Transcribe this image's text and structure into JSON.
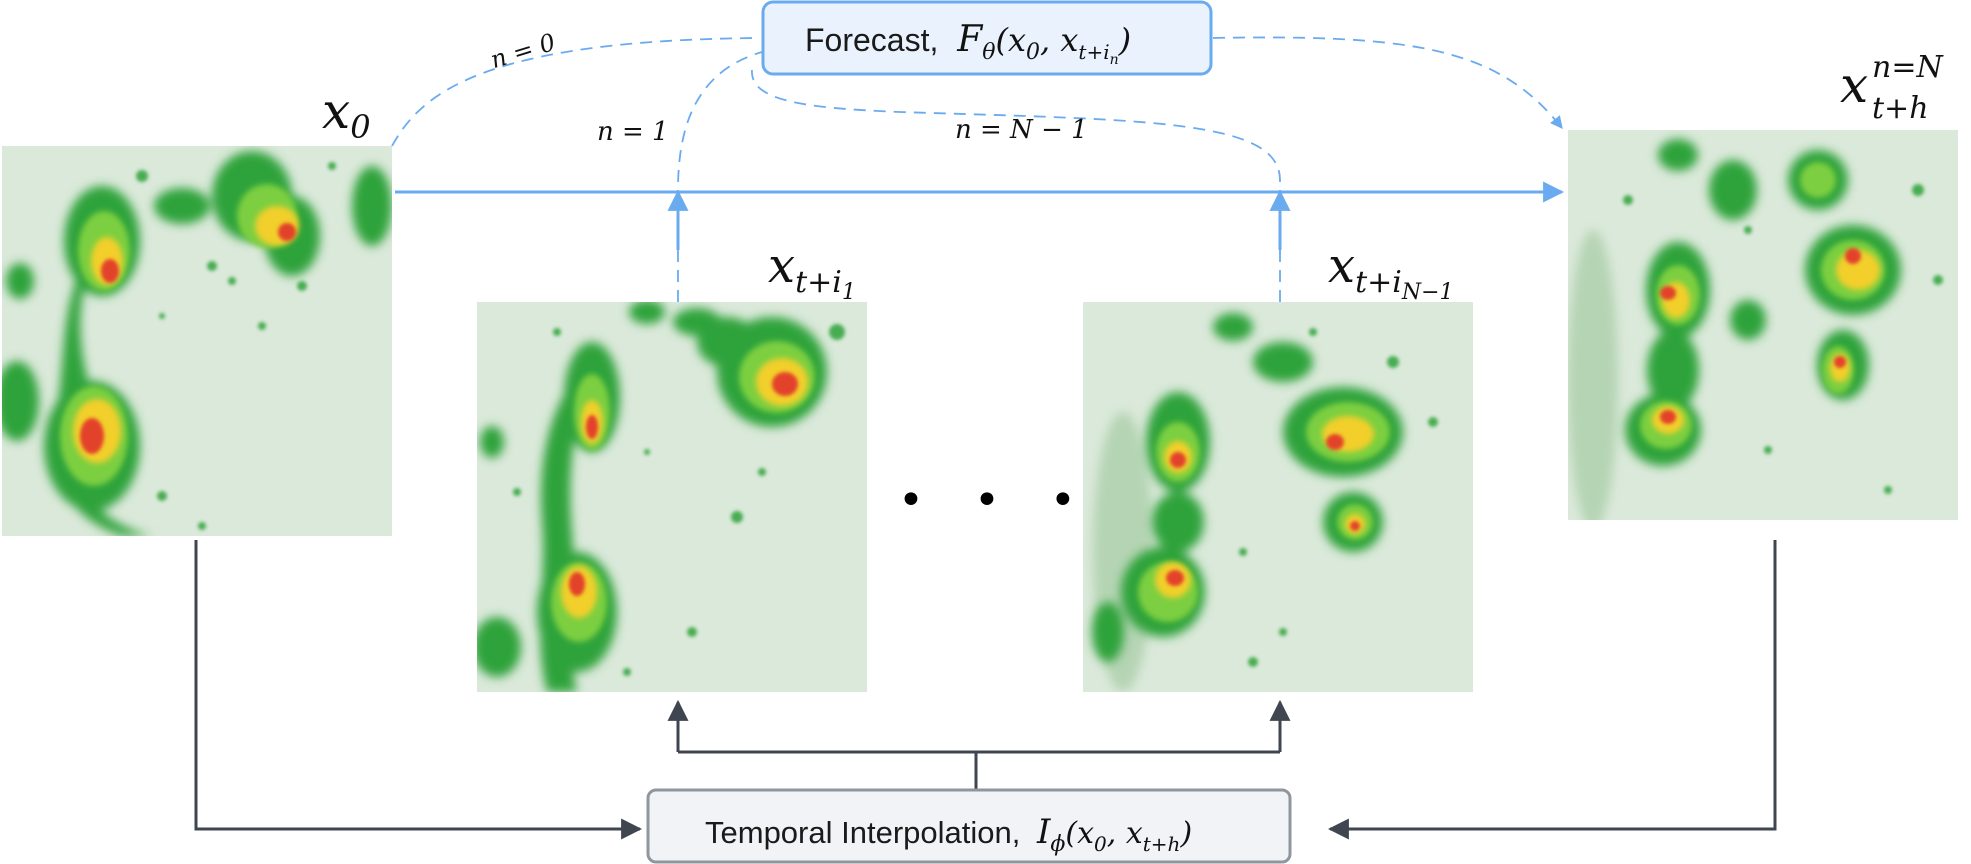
{
  "forecast_box": {
    "label": "Forecast,",
    "fn_symbol": "F",
    "fn_sub": "θ",
    "args_start": "(x",
    "arg1_sub": "0",
    "args_mid": ", x",
    "arg2_sub": "t+i",
    "arg2_subsub": "n",
    "args_end": ")"
  },
  "interp_box": {
    "label": "Temporal Interpolation,",
    "fn_symbol": "I",
    "fn_sub": "ϕ",
    "args_start": "(x",
    "arg1_sub": "0",
    "args_mid": ", x",
    "arg2_sub": "t+h",
    "args_end": ")"
  },
  "frames": {
    "x0": {
      "main": "x",
      "sub": "0"
    },
    "x1": {
      "main": "x",
      "sub": "t+i",
      "subsub": "1"
    },
    "xn1": {
      "main": "x",
      "sub": "t+i",
      "subsub": "N−1"
    },
    "xh": {
      "main": "x",
      "sup": "n=N",
      "sub": "t+h"
    }
  },
  "arc_labels": {
    "n0": "n = 0",
    "n1": "n = 1",
    "nN1": "n = N − 1"
  },
  "ellipsis": "• • •",
  "colors": {
    "forecast_blue": "#6aabf0",
    "box_blue_fill": "#eaf3fd",
    "gray_line": "#3f4650",
    "gray_box_fill": "#f1f3f6",
    "gray_box_stroke": "#8f969e",
    "radar_bg": "#dbe9da"
  }
}
